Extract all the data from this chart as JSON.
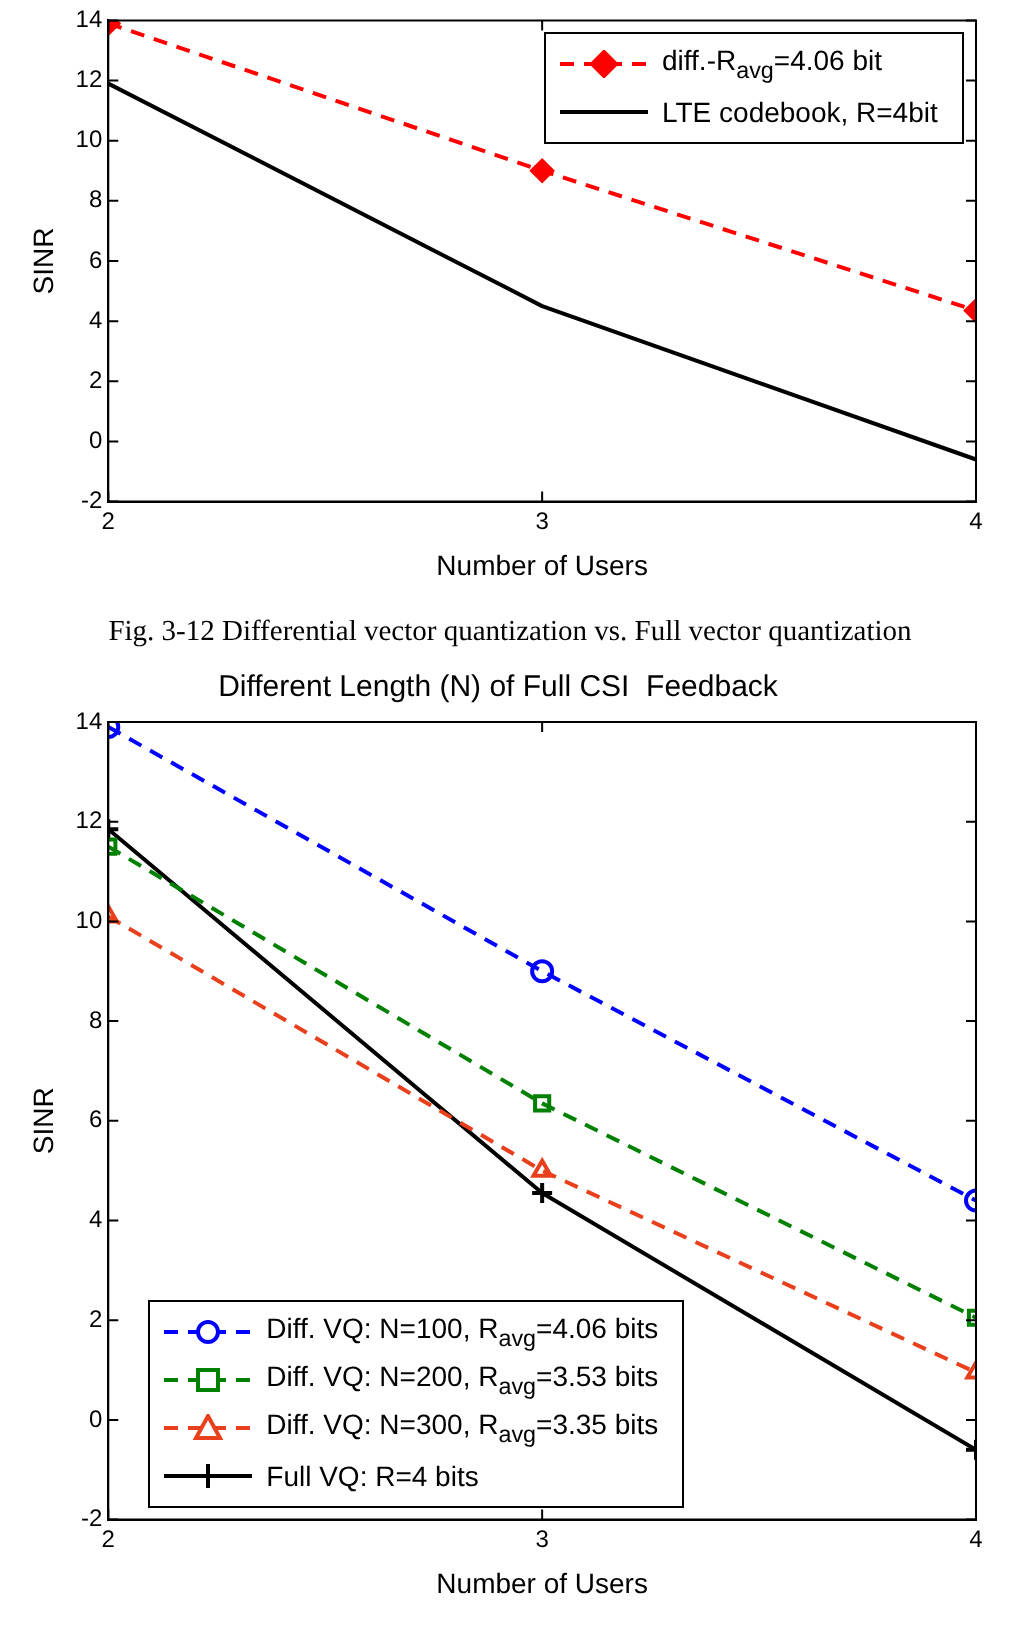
{
  "chart_data": [
    {
      "type": "line",
      "xlabel": "Number of Users",
      "ylabel": "SINR",
      "x": [
        2,
        3,
        4
      ],
      "xlim": [
        2,
        4
      ],
      "xticks": [
        2,
        3,
        4
      ],
      "ylim": [
        -2,
        14
      ],
      "yticks": [
        -2,
        0,
        2,
        4,
        6,
        8,
        10,
        12,
        14
      ],
      "grid": false,
      "legend": "top right",
      "annotations": [
        "Fig. 3-12 Differential vector quantization vs. Full vector quantization"
      ],
      "series": [
        {
          "name": "diff.-R$_{avg}$=4.06 bit",
          "color": "#ff0000",
          "values": [
            13.9,
            9.0,
            4.35
          ],
          "marker": "diamond",
          "line_style": "dashed"
        },
        {
          "name": "LTE codebook, R=4bit",
          "color": "#000000",
          "values": [
            11.9,
            4.5,
            -0.6
          ],
          "marker": "none",
          "line_style": "solid"
        }
      ]
    },
    {
      "type": "line",
      "title": "Different Length (N) of Full CSI  Feedback",
      "xlabel": "Number of Users",
      "ylabel": "SINR",
      "x": [
        2,
        3,
        4
      ],
      "xlim": [
        2,
        4
      ],
      "xticks": [
        2,
        3,
        4
      ],
      "ylim": [
        -2,
        14
      ],
      "yticks": [
        -2,
        0,
        2,
        4,
        6,
        8,
        10,
        12,
        14
      ],
      "grid": false,
      "legend": "bottom left",
      "series": [
        {
          "name": "Diff. VQ: N=100, R$_{avg}$=4.06 bits",
          "color": "#0000ff",
          "values": [
            13.9,
            9.0,
            4.4
          ],
          "marker": "circle",
          "line_style": "dashed"
        },
        {
          "name": "Diff. VQ: N=200, R$_{avg}$=3.53 bits",
          "color": "#008000",
          "values": [
            11.5,
            6.35,
            2.05
          ],
          "marker": "square",
          "line_style": "dashed"
        },
        {
          "name": "Diff. VQ: N=300, R$_{avg}$=3.35 bits",
          "color": "#e8401c",
          "values": [
            10.1,
            5.0,
            0.95
          ],
          "marker": "triangle",
          "line_style": "dashed"
        },
        {
          "name": "Full VQ: R=4 bits",
          "color": "#000000",
          "values": [
            11.85,
            4.55,
            -0.6
          ],
          "marker": "cross",
          "line_style": "solid"
        }
      ]
    }
  ]
}
